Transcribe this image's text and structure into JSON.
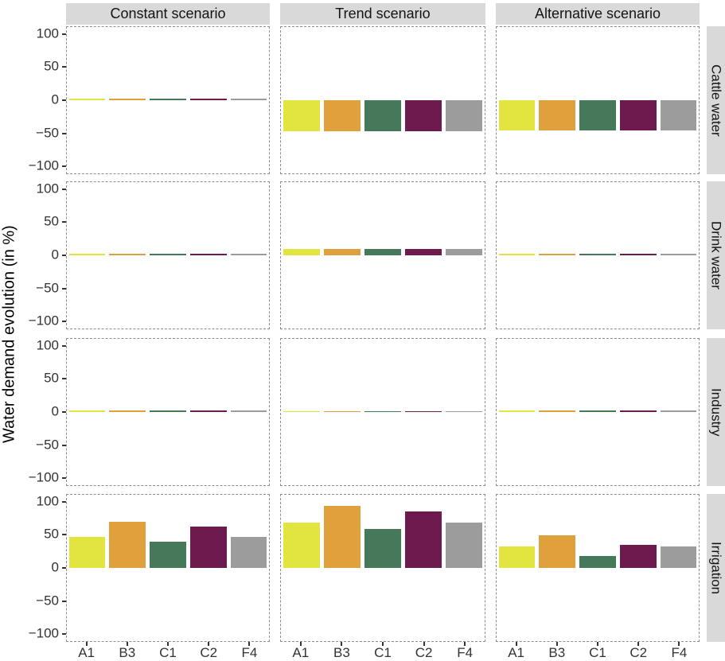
{
  "chart_data": {
    "type": "bar",
    "title": "",
    "ylabel": "Water demand evolution (in %)",
    "xlabel": "",
    "categories": [
      "A1",
      "B3",
      "C1",
      "C2",
      "F4"
    ],
    "col_facets": [
      "Constant scenario",
      "Trend scenario",
      "Alternative scenario"
    ],
    "row_facets": [
      "Cattle water",
      "Drink water",
      "Industry",
      "Irrigation"
    ],
    "y_ticks": [
      {
        "value": 100,
        "label": "100"
      },
      {
        "value": 50,
        "label": "50"
      },
      {
        "value": 0,
        "label": "0"
      },
      {
        "value": -50,
        "label": "−50"
      },
      {
        "value": -100,
        "label": "−100"
      }
    ],
    "ylim": [
      -112,
      112
    ],
    "grid": "off",
    "legend": "none",
    "bar_colors": {
      "A1": "#e2e43f",
      "B3": "#e0a03c",
      "C1": "#45795a",
      "C2": "#6f1a4f",
      "F4": "#9c9c9c"
    },
    "values": {
      "Cattle water": {
        "Constant scenario": [
          3,
          3,
          3,
          3,
          3
        ],
        "Trend scenario": [
          -48,
          -48,
          -48,
          -48,
          -48
        ],
        "Alternative scenario": [
          -46,
          -46,
          -46,
          -46,
          -46
        ]
      },
      "Drink water": {
        "Constant scenario": [
          3,
          3,
          3,
          3,
          3
        ],
        "Trend scenario": [
          10,
          10,
          10,
          10,
          10
        ],
        "Alternative scenario": [
          2,
          2,
          2,
          2,
          2
        ]
      },
      "Industry": {
        "Constant scenario": [
          3,
          3,
          3,
          3,
          3
        ],
        "Trend scenario": [
          1,
          1,
          1,
          1,
          1
        ],
        "Alternative scenario": [
          2,
          2,
          2,
          2,
          2
        ]
      },
      "Irrigation": {
        "Constant scenario": [
          48,
          71,
          40,
          63,
          48
        ],
        "Trend scenario": [
          70,
          95,
          60,
          87,
          70
        ],
        "Alternative scenario": [
          33,
          50,
          18,
          35,
          33
        ]
      }
    },
    "colors": {
      "strip_background": "#d9d9d9",
      "panel_border": "#8d8d8d",
      "axis_text": "#333333",
      "strip_text": "#141414"
    }
  }
}
